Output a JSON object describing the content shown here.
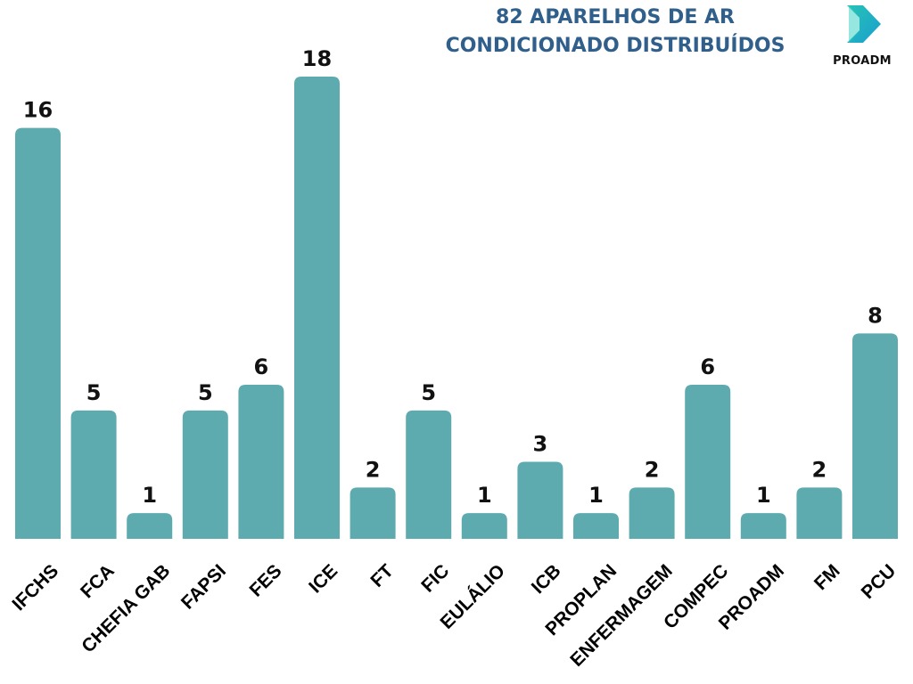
{
  "header": {
    "title_line1": "82 APARELHOS DE AR",
    "title_line2": "CONDICIONADO DISTRIBUÍDOS"
  },
  "brand": {
    "name": "PROADM",
    "logo_icon": "play-arrow-icon",
    "logo_colors": [
      "#27c3b5",
      "#1a9ecf"
    ]
  },
  "chart_data": {
    "type": "bar",
    "categories": [
      "IFCHS",
      "FCA",
      "CHEFIA GAB",
      "FAPSI",
      "FES",
      "ICE",
      "FT",
      "FIC",
      "EULÁLIO",
      "ICB",
      "PROPLAN",
      "ENFERMAGEM",
      "COMPEC",
      "PROADM",
      "FM",
      "PCU"
    ],
    "values": [
      16,
      5,
      1,
      5,
      6,
      18,
      2,
      5,
      1,
      3,
      1,
      2,
      6,
      1,
      2,
      8
    ],
    "ylim": [
      0,
      18
    ],
    "grid": false,
    "legend": "none",
    "bar_color": "#5eabaf"
  }
}
